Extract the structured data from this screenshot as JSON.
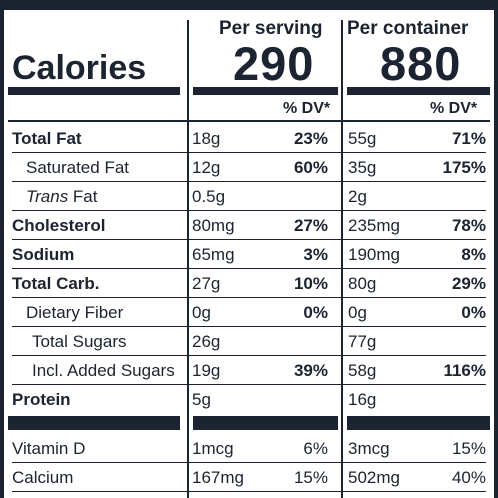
{
  "header": {
    "per_serving": "Per serving",
    "per_container": "Per container",
    "calories_label": "Calories",
    "calories_serving": "290",
    "calories_container": "880",
    "dv_serving": "% DV*",
    "dv_container": "% DV*"
  },
  "nutrients": [
    {
      "label": "Total Fat",
      "style": "bold",
      "amt": "18g",
      "pct": "23%",
      "amt2": "55g",
      "pct2": "71%"
    },
    {
      "label": "Saturated Fat",
      "style": "ind1",
      "amt": "12g",
      "pct": "60%",
      "amt2": "35g",
      "pct2": "175%"
    },
    {
      "label_italic": "Trans",
      "label": " Fat",
      "style": "ind1",
      "amt": "0.5g",
      "pct": "",
      "amt2": "2g",
      "pct2": ""
    },
    {
      "label": "Cholesterol",
      "style": "bold",
      "amt": "80mg",
      "pct": "27%",
      "amt2": "235mg",
      "pct2": "78%"
    },
    {
      "label": "Sodium",
      "style": "bold",
      "amt": "65mg",
      "pct": "3%",
      "amt2": "190mg",
      "pct2": "8%"
    },
    {
      "label": "Total Carb.",
      "style": "bold",
      "amt": "27g",
      "pct": "10%",
      "amt2": "80g",
      "pct2": "29%"
    },
    {
      "label": "Dietary Fiber",
      "style": "ind1",
      "amt": "0g",
      "pct": "0%",
      "amt2": "0g",
      "pct2": "0%"
    },
    {
      "label": "Total Sugars",
      "style": "ind2",
      "amt": "26g",
      "pct": "",
      "amt2": "77g",
      "pct2": ""
    },
    {
      "label": "Incl. Added Sugars",
      "style": "ind2",
      "amt": "19g",
      "pct": "39%",
      "amt2": "58g",
      "pct2": "116%"
    },
    {
      "label": "Protein",
      "style": "bold",
      "amt": "5g",
      "pct": "",
      "amt2": "16g",
      "pct2": ""
    }
  ],
  "vitamins": [
    {
      "label": "Vitamin D",
      "amt": "1mcg",
      "pct": "6%",
      "amt2": "3mcg",
      "pct2": "15%"
    },
    {
      "label": "Calcium",
      "amt": "167mg",
      "pct": "15%",
      "amt2": "502mg",
      "pct2": "40%"
    }
  ],
  "colors": {
    "ink": "#1b2430",
    "background": "#ffffff"
  }
}
